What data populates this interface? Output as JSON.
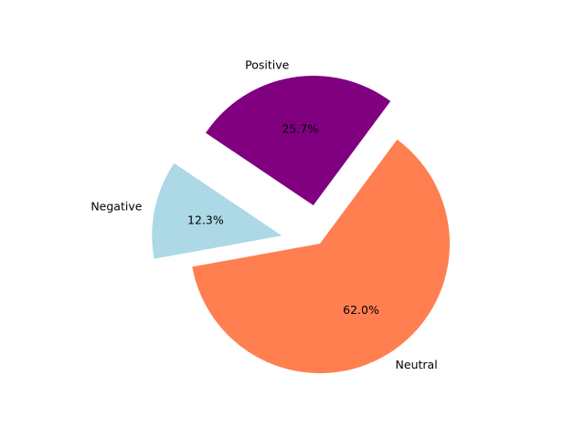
{
  "chart_data": {
    "type": "pie",
    "slices": [
      {
        "label": "Positive",
        "value": 25.7,
        "pct_label": "25.7%",
        "color": "#800080",
        "exploded": true
      },
      {
        "label": "Negative",
        "value": 12.3,
        "pct_label": "12.3%",
        "color": "#add8e6",
        "exploded": true
      },
      {
        "label": "Neutral",
        "value": 62.0,
        "pct_label": "62.0%",
        "color": "#ff7f50",
        "exploded": false
      }
    ],
    "start_angle_deg": 53.5,
    "direction": "counterclockwise",
    "legend": "none"
  }
}
